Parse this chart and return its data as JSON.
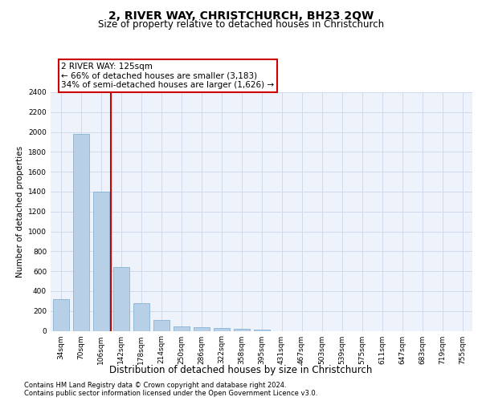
{
  "title": "2, RIVER WAY, CHRISTCHURCH, BH23 2QW",
  "subtitle": "Size of property relative to detached houses in Christchurch",
  "xlabel": "Distribution of detached houses by size in Christchurch",
  "ylabel": "Number of detached properties",
  "categories": [
    "34sqm",
    "70sqm",
    "106sqm",
    "142sqm",
    "178sqm",
    "214sqm",
    "250sqm",
    "286sqm",
    "322sqm",
    "358sqm",
    "395sqm",
    "431sqm",
    "467sqm",
    "503sqm",
    "539sqm",
    "575sqm",
    "611sqm",
    "647sqm",
    "683sqm",
    "719sqm",
    "755sqm"
  ],
  "values": [
    320,
    1980,
    1400,
    640,
    280,
    105,
    45,
    38,
    28,
    18,
    12,
    0,
    0,
    0,
    0,
    0,
    0,
    0,
    0,
    0,
    0
  ],
  "bar_color": "#b8cfe8",
  "bar_edge_color": "#7aaad0",
  "grid_color": "#d0daea",
  "background_color": "#edf2fb",
  "vline_x": 2.5,
  "vline_color": "#cc0000",
  "annotation_text": "2 RIVER WAY: 125sqm\n← 66% of detached houses are smaller (3,183)\n34% of semi-detached houses are larger (1,626) →",
  "annotation_box_color": "#cc0000",
  "ylim": [
    0,
    2400
  ],
  "yticks": [
    0,
    200,
    400,
    600,
    800,
    1000,
    1200,
    1400,
    1600,
    1800,
    2000,
    2200,
    2400
  ],
  "footer_line1": "Contains HM Land Registry data © Crown copyright and database right 2024.",
  "footer_line2": "Contains public sector information licensed under the Open Government Licence v3.0.",
  "title_fontsize": 10,
  "subtitle_fontsize": 8.5,
  "xlabel_fontsize": 8.5,
  "ylabel_fontsize": 7.5,
  "tick_fontsize": 6.5,
  "footer_fontsize": 6.0,
  "ann_fontsize": 7.5
}
